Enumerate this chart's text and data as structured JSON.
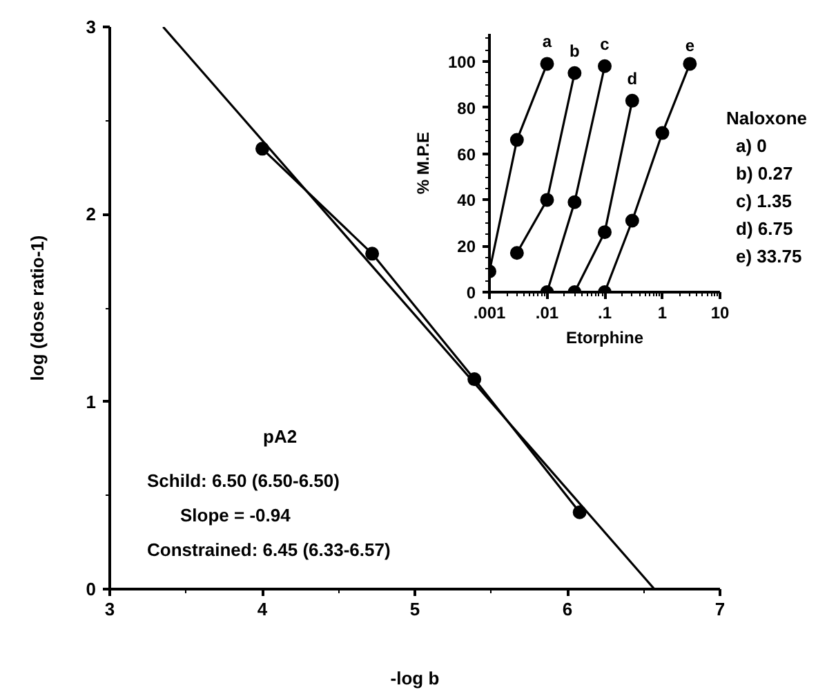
{
  "chart_data": [
    {
      "type": "line",
      "xlabel": "-log b",
      "ylabel": "log (dose ratio-1)",
      "xlim": [
        3,
        7
      ],
      "ylim": [
        0,
        3
      ],
      "xticks": [
        3,
        4,
        5,
        6,
        7
      ],
      "yticks": [
        0,
        1,
        2,
        3
      ],
      "grid": false,
      "legend": false,
      "annotations": [
        "pA2",
        "Schild: 6.50 (6.50-6.50)",
        "Slope = -0.94",
        "Constrained: 6.45 (6.33-6.57)"
      ],
      "series": [
        {
          "type": "line",
          "marker": "circle",
          "color": "#000000",
          "x": [
            4.0,
            4.72,
            5.39,
            6.08
          ],
          "values": [
            2.35,
            1.79,
            1.12,
            0.41
          ]
        },
        {
          "type": "line",
          "marker": "none",
          "color": "#000000",
          "x": [
            3.35,
            6.57
          ],
          "values": [
            3,
            0
          ]
        }
      ]
    },
    {
      "type": "line",
      "xlabel": "Etorphine",
      "ylabel": "% M.P.E",
      "log": "x",
      "xlim": [
        0.001,
        10
      ],
      "ylim": [
        0,
        112
      ],
      "xticks": [
        {
          "value": 0.001,
          "label": ".001"
        },
        {
          "value": 0.01,
          "label": ".01"
        },
        {
          "value": 0.1,
          "label": ".1"
        },
        1,
        10
      ],
      "yticks": [
        0,
        20,
        40,
        60,
        80,
        100
      ],
      "grid": false,
      "legend": false,
      "marker": "circle",
      "annotations": [
        "Naloxone",
        "a) 0",
        "b) 0.27",
        "c) 1.35",
        "d) 6.75",
        "e) 33.75"
      ],
      "series": [
        {
          "name": "a",
          "color": "#000000",
          "x": [
            0.001,
            0.003,
            0.01
          ],
          "values": [
            9,
            66,
            99
          ]
        },
        {
          "name": "b",
          "color": "#000000",
          "x": [
            0.003,
            0.01,
            0.03
          ],
          "values": [
            17,
            40,
            95
          ]
        },
        {
          "name": "c",
          "color": "#000000",
          "x": [
            0.01,
            0.03,
            0.1
          ],
          "values": [
            0,
            39,
            98
          ]
        },
        {
          "name": "d",
          "color": "#000000",
          "x": [
            0.03,
            0.1,
            0.3
          ],
          "values": [
            0,
            26,
            83
          ]
        },
        {
          "name": "e",
          "color": "#000000",
          "x": [
            0.1,
            0.3,
            1,
            3
          ],
          "values": [
            0,
            31,
            69,
            99
          ]
        }
      ]
    }
  ]
}
